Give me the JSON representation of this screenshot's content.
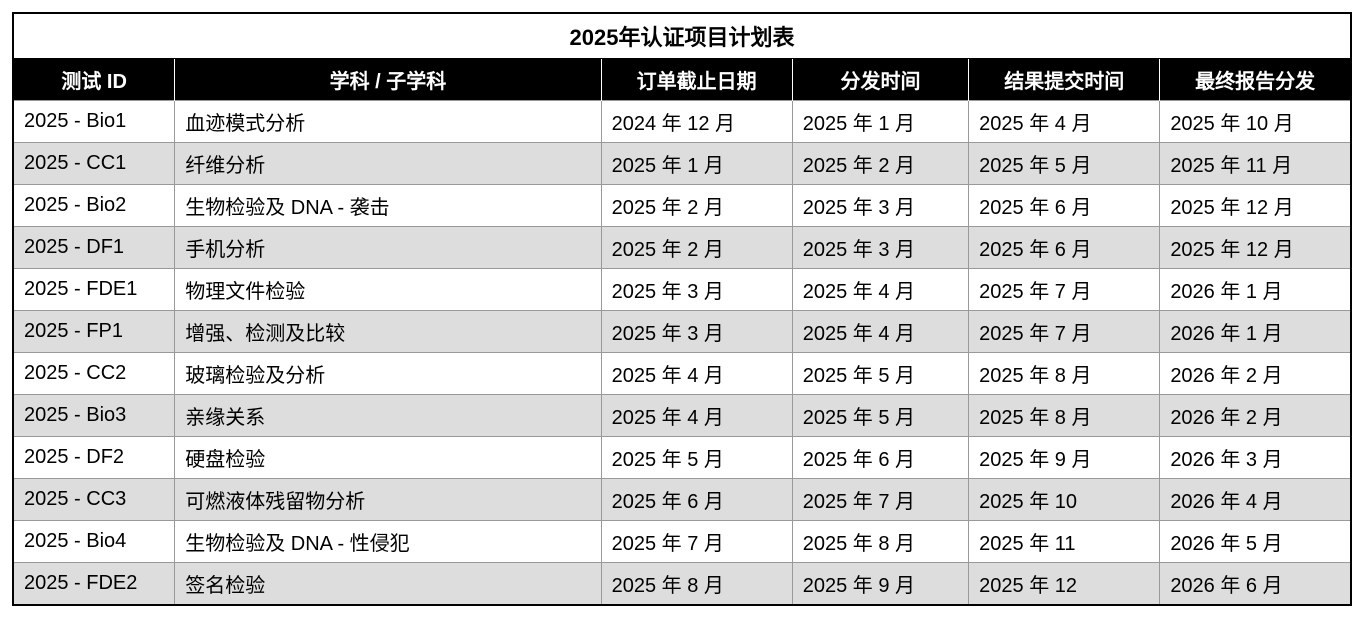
{
  "table": {
    "title": "2025年认证项目计划表",
    "columns": [
      "测试 ID",
      "学科 / 子学科",
      "订单截止日期",
      "分发时间",
      "结果提交时间",
      "最终报告分发"
    ],
    "rows": [
      [
        "2025 - Bio1",
        "血迹模式分析",
        "2024 年 12 月",
        "2025 年 1 月",
        "2025 年 4 月",
        "2025 年 10 月"
      ],
      [
        "2025 - CC1",
        "纤维分析",
        "2025 年 1 月",
        "2025 年 2 月",
        "2025 年 5 月",
        "2025 年 11 月"
      ],
      [
        "2025 - Bio2",
        "生物检验及 DNA - 袭击",
        "2025 年 2 月",
        "2025 年 3 月",
        "2025 年 6 月",
        "2025 年 12 月"
      ],
      [
        "2025 - DF1",
        "手机分析",
        "2025 年 2 月",
        "2025 年 3 月",
        "2025 年 6 月",
        "2025 年 12 月"
      ],
      [
        "2025 - FDE1",
        "物理文件检验",
        "2025 年 3 月",
        "2025 年 4 月",
        "2025 年 7 月",
        "2026 年 1 月"
      ],
      [
        "2025 - FP1",
        "增强、检测及比较",
        "2025 年 3 月",
        "2025 年 4 月",
        "2025 年 7 月",
        "2026 年 1 月"
      ],
      [
        "2025 - CC2",
        "玻璃检验及分析",
        "2025 年 4 月",
        "2025 年 5 月",
        "2025 年 8 月",
        "2026 年 2 月"
      ],
      [
        "2025 - Bio3",
        "亲缘关系",
        "2025 年 4 月",
        "2025 年 5 月",
        "2025 年 8 月",
        "2026 年 2 月"
      ],
      [
        "2025 - DF2",
        "硬盘检验",
        "2025 年 5 月",
        "2025 年 6 月",
        "2025 年 9 月",
        "2026 年 3 月"
      ],
      [
        "2025 - CC3",
        "可燃液体残留物分析",
        "2025 年 6 月",
        "2025 年 7 月",
        "2025 年 10",
        "2026 年 4 月"
      ],
      [
        "2025 - Bio4",
        "生物检验及 DNA - 性侵犯",
        "2025 年 7 月",
        "2025 年 8 月",
        "2025 年 11",
        "2026 年 5 月"
      ],
      [
        "2025 - FDE2",
        "签名检验",
        "2025 年 8 月",
        "2025 年 9 月",
        "2025 年 12",
        "2026 年 6 月"
      ]
    ]
  }
}
